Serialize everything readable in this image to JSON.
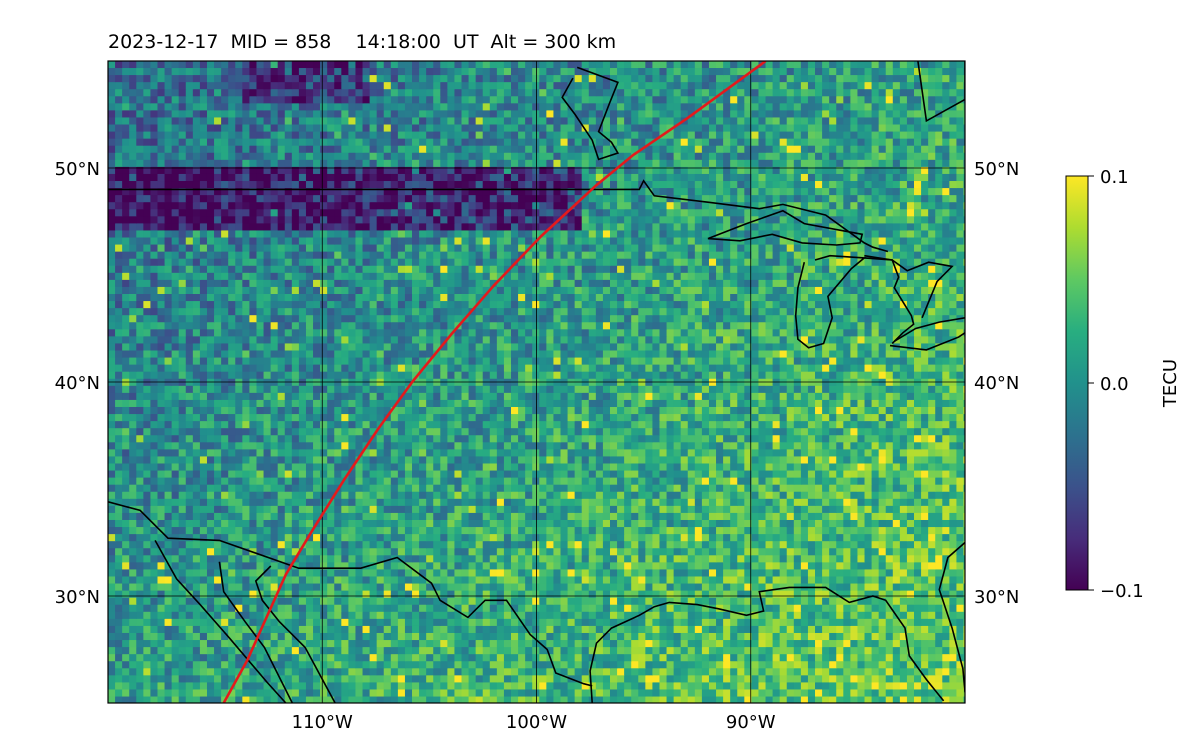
{
  "chart_data": {
    "type": "heatmap",
    "title": "2023-12-17  MID = 858    14:18:00  UT  Alt = 300 km",
    "projection": "equirectangular",
    "xlim": [
      -120,
      -80
    ],
    "ylim": [
      25,
      55
    ],
    "x_ticks": [
      -110,
      -100,
      -90
    ],
    "x_tick_labels": [
      "110°W",
      "100°W",
      "90°W"
    ],
    "y_ticks": [
      30,
      40,
      50
    ],
    "y_tick_labels": [
      "30°N",
      "40°N",
      "50°N"
    ],
    "y_ticks_both_sides": true,
    "grid": true,
    "colormap": "viridis",
    "colorbar": {
      "label": "TECU",
      "range": [
        -0.1,
        0.1
      ],
      "ticks": [
        0.1,
        0.0,
        -0.1
      ],
      "tick_labels": [
        "0.1",
        "0.0",
        "−0.1"
      ],
      "placement": "right"
    },
    "field_description_regions": [
      {
        "region": "northern band near 49N, 120W-100W",
        "typical_value": -0.08
      },
      {
        "region": "northwest background",
        "typical_value": -0.02
      },
      {
        "region": "central plains",
        "typical_value": 0.02
      },
      {
        "region": "southeast / gulf coast",
        "typical_value": 0.07
      }
    ],
    "series": [
      {
        "type": "line",
        "color": "#e41a1c",
        "points": [
          [
            -114.6,
            25
          ],
          [
            -113.5,
            27
          ],
          [
            -112.6,
            29
          ],
          [
            -111.7,
            31
          ],
          [
            -110.5,
            33
          ],
          [
            -109.0,
            35.4
          ],
          [
            -107.4,
            37.8
          ],
          [
            -105.8,
            40
          ],
          [
            -104.0,
            42.2
          ],
          [
            -102.0,
            44.5
          ],
          [
            -99.8,
            46.8
          ],
          [
            -97.2,
            49.2
          ],
          [
            -95.5,
            50.6
          ],
          [
            -93.0,
            52.3
          ],
          [
            -89.3,
            55
          ]
        ]
      }
    ],
    "coastlines_color": "#000000"
  }
}
